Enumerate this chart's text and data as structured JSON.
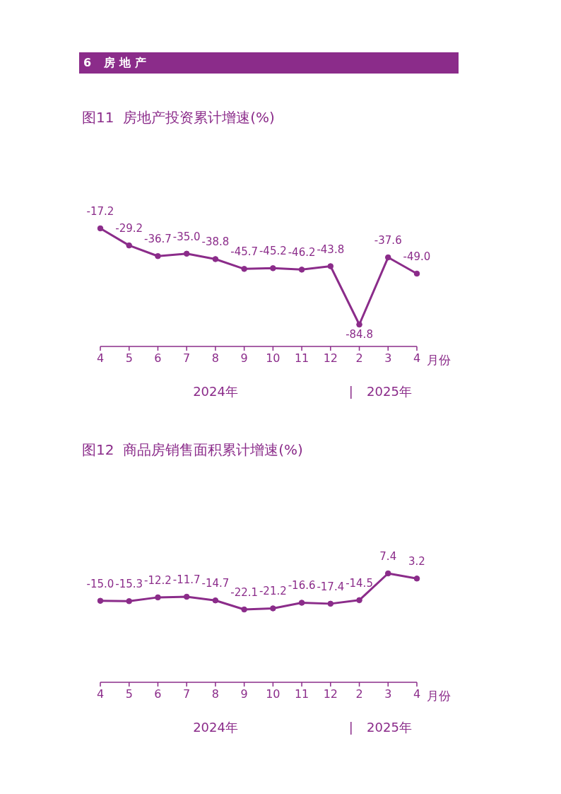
{
  "chart_data": [
    {
      "type": "other",
      "title": "6 房地产"
    },
    {
      "type": "line",
      "title": "图11  房地产投资累计增速(%)",
      "xlabel": "月份",
      "categories": [
        "4",
        "5",
        "6",
        "7",
        "8",
        "9",
        "10",
        "11",
        "12",
        "2",
        "3",
        "4"
      ],
      "values": [
        -17.2,
        -29.2,
        -36.7,
        -35.0,
        -38.8,
        -45.7,
        -45.2,
        -46.2,
        -43.8,
        -84.8,
        -37.6,
        -49.0
      ],
      "value_labels": [
        "-17.2",
        "-29.2",
        "-36.7",
        "-35.0",
        "-38.8",
        "-45.7",
        "-45.2",
        "-46.2",
        "-43.8",
        "-84.8",
        "-37.6",
        "-49.0"
      ],
      "color": "#8b2c8a",
      "tick_labels": "x",
      "marker": "circle",
      "annotations": [
        "2024年",
        "|",
        "2025年"
      ]
    },
    {
      "type": "line",
      "title": "图12  商品房销售面积累计增速(%)",
      "xlabel": "月份",
      "categories": [
        "4",
        "5",
        "6",
        "7",
        "8",
        "9",
        "10",
        "11",
        "12",
        "2",
        "3",
        "4"
      ],
      "values": [
        -15.0,
        -15.3,
        -12.2,
        -11.7,
        -14.7,
        -22.1,
        -21.2,
        -16.6,
        -17.4,
        -14.5,
        7.4,
        3.2
      ],
      "value_labels": [
        "-15.0",
        "-15.3",
        "-12.2",
        "-11.7",
        "-14.7",
        "-22.1",
        "-21.2",
        "-16.6",
        "-17.4",
        "-14.5",
        "7.4",
        "3.2"
      ],
      "color": "#8b2c8a",
      "tick_labels": "x",
      "marker": "circle",
      "annotations": [
        "2024年",
        "|",
        "2025年"
      ]
    }
  ]
}
